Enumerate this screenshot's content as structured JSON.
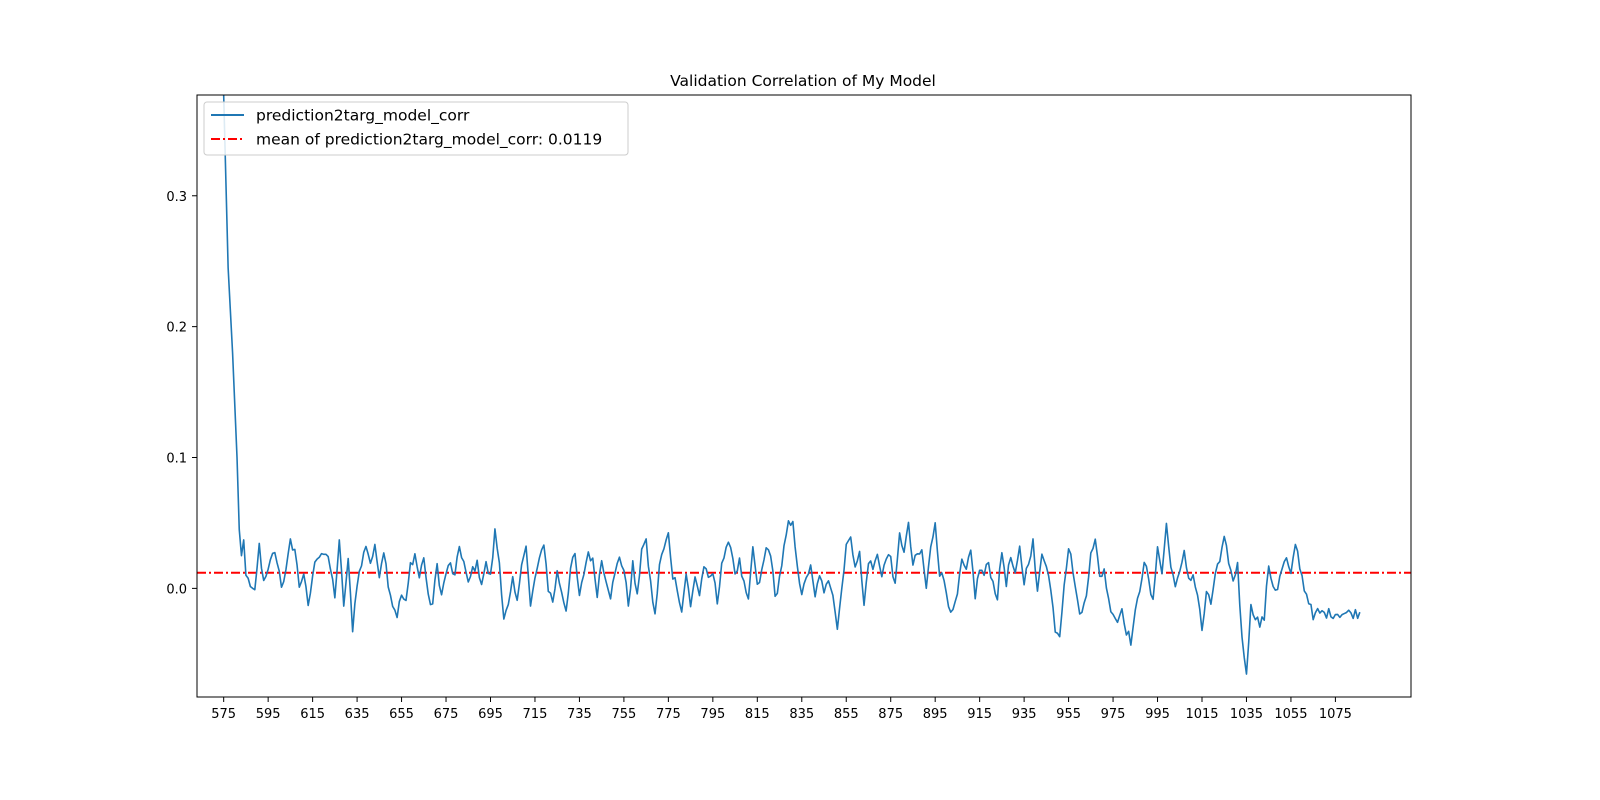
{
  "chart_data": {
    "type": "line",
    "title": "Validation Correlation of My Model",
    "xlabel": "",
    "ylabel": "",
    "x_start": 575,
    "x_end": 1086,
    "xlim": [
      563,
      1109
    ],
    "ylim": [
      -0.083,
      0.377
    ],
    "x_ticks": [
      575,
      595,
      615,
      635,
      655,
      675,
      695,
      715,
      735,
      755,
      775,
      795,
      815,
      835,
      855,
      875,
      895,
      915,
      935,
      955,
      975,
      995,
      1015,
      1035,
      1055,
      1075
    ],
    "y_ticks": [
      0.0,
      0.1,
      0.2,
      0.3
    ],
    "y_tick_labels": [
      "0.0",
      "0.1",
      "0.2",
      "0.3"
    ],
    "grid": false,
    "legend_position": "top-left",
    "series": [
      {
        "name": "prediction2targ_model_corr",
        "color": "#1f77b4",
        "style": "solid",
        "key_points": [
          [
            575,
            0.377
          ],
          [
            577,
            0.245
          ],
          [
            579,
            0.18
          ],
          [
            581,
            0.1
          ],
          [
            582,
            0.045
          ],
          [
            583,
            0.025
          ],
          [
            584,
            0.037
          ],
          [
            585,
            0.01
          ],
          [
            587,
            0.003
          ],
          [
            589,
            -0.005
          ],
          [
            591,
            0.033
          ],
          [
            593,
            0.003
          ],
          [
            595,
            0.012
          ],
          [
            597,
            0.028
          ],
          [
            599,
            0.022
          ],
          [
            601,
            0.003
          ],
          [
            603,
            0.012
          ],
          [
            605,
            0.035
          ],
          [
            607,
            0.03
          ],
          [
            609,
            0.002
          ],
          [
            611,
            0.012
          ],
          [
            613,
            -0.016
          ],
          [
            615,
            0.01
          ],
          [
            617,
            0.025
          ],
          [
            619,
            0.028
          ],
          [
            621,
            0.026
          ],
          [
            623,
            0.015
          ],
          [
            625,
            -0.005
          ],
          [
            627,
            0.034
          ],
          [
            629,
            -0.012
          ],
          [
            631,
            0.02
          ],
          [
            633,
            -0.03
          ],
          [
            635,
            0.005
          ],
          [
            637,
            0.018
          ],
          [
            639,
            0.034
          ],
          [
            641,
            0.02
          ],
          [
            643,
            0.03
          ],
          [
            645,
            0.012
          ],
          [
            647,
            0.03
          ],
          [
            649,
            0.005
          ],
          [
            651,
            -0.012
          ],
          [
            653,
            -0.02
          ],
          [
            655,
            -0.005
          ],
          [
            657,
            -0.012
          ],
          [
            659,
            0.018
          ],
          [
            661,
            0.026
          ],
          [
            663,
            0.008
          ],
          [
            665,
            0.025
          ],
          [
            667,
            -0.008
          ],
          [
            669,
            -0.012
          ],
          [
            671,
            0.018
          ],
          [
            673,
            -0.006
          ],
          [
            675,
            0.012
          ],
          [
            677,
            0.018
          ],
          [
            679,
            0.008
          ],
          [
            681,
            0.032
          ],
          [
            683,
            0.02
          ],
          [
            685,
            0.002
          ],
          [
            687,
            0.015
          ],
          [
            689,
            0.018
          ],
          [
            691,
            0.005
          ],
          [
            693,
            0.018
          ],
          [
            695,
            0.008
          ],
          [
            697,
            0.043
          ],
          [
            699,
            0.02
          ],
          [
            701,
            -0.022
          ],
          [
            703,
            -0.015
          ],
          [
            705,
            0.005
          ],
          [
            707,
            -0.012
          ],
          [
            709,
            0.022
          ],
          [
            711,
            0.032
          ],
          [
            713,
            -0.015
          ],
          [
            715,
            0.008
          ],
          [
            717,
            0.02
          ],
          [
            719,
            0.036
          ],
          [
            721,
            0.0
          ],
          [
            723,
            -0.01
          ],
          [
            725,
            0.012
          ],
          [
            727,
            -0.002
          ],
          [
            729,
            -0.016
          ],
          [
            731,
            0.015
          ],
          [
            733,
            0.025
          ],
          [
            735,
            -0.008
          ],
          [
            737,
            0.012
          ],
          [
            739,
            0.028
          ],
          [
            741,
            0.02
          ],
          [
            743,
            -0.003
          ],
          [
            745,
            0.022
          ],
          [
            747,
            0.008
          ],
          [
            749,
            -0.005
          ],
          [
            751,
            0.01
          ],
          [
            753,
            0.025
          ],
          [
            755,
            0.014
          ],
          [
            757,
            -0.012
          ],
          [
            759,
            0.018
          ],
          [
            761,
            -0.008
          ],
          [
            763,
            0.032
          ],
          [
            765,
            0.034
          ],
          [
            767,
            0.004
          ],
          [
            769,
            -0.022
          ],
          [
            771,
            0.018
          ],
          [
            773,
            0.03
          ],
          [
            775,
            0.041
          ],
          [
            777,
            0.01
          ],
          [
            779,
            0.002
          ],
          [
            781,
            -0.018
          ],
          [
            783,
            0.012
          ],
          [
            785,
            -0.015
          ],
          [
            787,
            0.01
          ],
          [
            789,
            -0.005
          ],
          [
            791,
            0.018
          ],
          [
            793,
            0.005
          ],
          [
            795,
            0.012
          ],
          [
            797,
            -0.01
          ],
          [
            799,
            0.02
          ],
          [
            801,
            0.028
          ],
          [
            803,
            0.035
          ],
          [
            805,
            0.012
          ],
          [
            807,
            0.02
          ],
          [
            809,
            0.002
          ],
          [
            811,
            -0.012
          ],
          [
            813,
            0.032
          ],
          [
            815,
            0.0
          ],
          [
            817,
            0.012
          ],
          [
            819,
            0.03
          ],
          [
            821,
            0.028
          ],
          [
            823,
            -0.008
          ],
          [
            825,
            0.008
          ],
          [
            827,
            0.03
          ],
          [
            829,
            0.048
          ],
          [
            831,
            0.048
          ],
          [
            833,
            0.02
          ],
          [
            835,
            -0.008
          ],
          [
            837,
            0.01
          ],
          [
            839,
            0.015
          ],
          [
            841,
            -0.008
          ],
          [
            843,
            0.012
          ],
          [
            845,
            -0.006
          ],
          [
            847,
            0.008
          ],
          [
            849,
            -0.002
          ],
          [
            851,
            -0.03
          ],
          [
            853,
            0.0
          ],
          [
            855,
            0.035
          ],
          [
            857,
            0.036
          ],
          [
            859,
            0.02
          ],
          [
            861,
            0.026
          ],
          [
            863,
            -0.014
          ],
          [
            865,
            0.022
          ],
          [
            867,
            0.015
          ],
          [
            869,
            0.025
          ],
          [
            871,
            0.012
          ],
          [
            873,
            0.022
          ],
          [
            875,
            0.025
          ],
          [
            877,
            0.0
          ],
          [
            879,
            0.04
          ],
          [
            881,
            0.03
          ],
          [
            883,
            0.047
          ],
          [
            885,
            0.018
          ],
          [
            887,
            0.025
          ],
          [
            889,
            0.028
          ],
          [
            891,
            0.0
          ],
          [
            893,
            0.03
          ],
          [
            895,
            0.052
          ],
          [
            897,
            0.012
          ],
          [
            899,
            0.006
          ],
          [
            901,
            -0.01
          ],
          [
            903,
            -0.02
          ],
          [
            905,
            -0.005
          ],
          [
            907,
            0.02
          ],
          [
            909,
            0.012
          ],
          [
            911,
            0.028
          ],
          [
            913,
            -0.005
          ],
          [
            915,
            0.015
          ],
          [
            917,
            0.01
          ],
          [
            919,
            0.02
          ],
          [
            921,
            0.004
          ],
          [
            923,
            -0.006
          ],
          [
            925,
            0.028
          ],
          [
            927,
            0.005
          ],
          [
            929,
            0.024
          ],
          [
            931,
            0.008
          ],
          [
            933,
            0.03
          ],
          [
            935,
            0.005
          ],
          [
            937,
            0.022
          ],
          [
            939,
            0.035
          ],
          [
            941,
            -0.005
          ],
          [
            943,
            0.028
          ],
          [
            945,
            0.02
          ],
          [
            947,
            -0.002
          ],
          [
            949,
            -0.03
          ],
          [
            951,
            -0.035
          ],
          [
            953,
            0.005
          ],
          [
            955,
            0.032
          ],
          [
            957,
            0.015
          ],
          [
            959,
            -0.012
          ],
          [
            961,
            -0.02
          ],
          [
            963,
            -0.005
          ],
          [
            965,
            0.03
          ],
          [
            967,
            0.036
          ],
          [
            969,
            0.008
          ],
          [
            971,
            0.015
          ],
          [
            973,
            -0.01
          ],
          [
            975,
            -0.018
          ],
          [
            977,
            -0.025
          ],
          [
            979,
            -0.015
          ],
          [
            981,
            -0.032
          ],
          [
            983,
            -0.04
          ],
          [
            985,
            -0.02
          ],
          [
            987,
            0.0
          ],
          [
            989,
            0.022
          ],
          [
            991,
            0.005
          ],
          [
            993,
            -0.012
          ],
          [
            995,
            0.035
          ],
          [
            997,
            0.01
          ],
          [
            999,
            0.05
          ],
          [
            1001,
            0.015
          ],
          [
            1003,
            0.005
          ],
          [
            1005,
            0.01
          ],
          [
            1007,
            0.026
          ],
          [
            1009,
            0.008
          ],
          [
            1011,
            0.01
          ],
          [
            1013,
            -0.005
          ],
          [
            1015,
            -0.032
          ],
          [
            1017,
            -0.005
          ],
          [
            1019,
            -0.012
          ],
          [
            1021,
            0.012
          ],
          [
            1023,
            0.02
          ],
          [
            1025,
            0.036
          ],
          [
            1027,
            0.022
          ],
          [
            1029,
            0.004
          ],
          [
            1031,
            0.02
          ],
          [
            1033,
            -0.04
          ],
          [
            1035,
            -0.062
          ],
          [
            1037,
            -0.015
          ],
          [
            1039,
            -0.02
          ],
          [
            1041,
            -0.028
          ],
          [
            1043,
            -0.022
          ],
          [
            1045,
            0.018
          ],
          [
            1047,
            0.002
          ],
          [
            1049,
            0.0
          ],
          [
            1051,
            0.015
          ],
          [
            1053,
            0.022
          ],
          [
            1055,
            0.008
          ],
          [
            1057,
            0.035
          ],
          [
            1059,
            0.018
          ],
          [
            1061,
            0.0
          ],
          [
            1063,
            -0.008
          ],
          [
            1065,
            -0.024
          ],
          [
            1067,
            -0.018
          ],
          [
            1069,
            -0.019
          ]
        ]
      },
      {
        "name": "mean of prediction2targ_model_corr: 0.0119",
        "color": "#ff0000",
        "style": "dashdot",
        "type": "hline",
        "y": 0.0119
      }
    ]
  }
}
